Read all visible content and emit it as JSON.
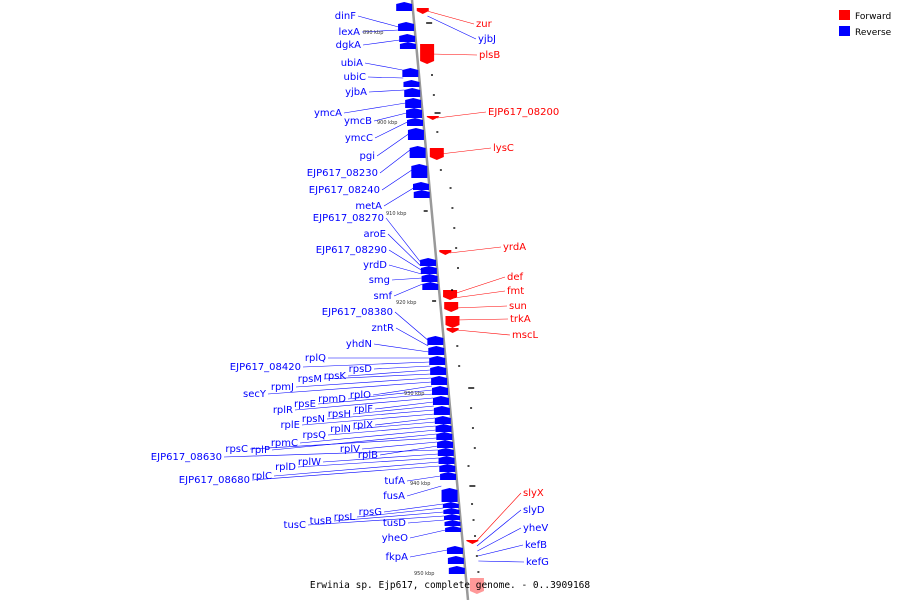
{
  "caption": "Erwinia sp. Ejp617, complete genome. - 0..3909168",
  "legend": [
    {
      "label": "Forward",
      "color": "#ff0000"
    },
    {
      "label": "Reverse",
      "color": "#0000ff"
    }
  ],
  "colors": {
    "forward": "#ff0000",
    "reverse": "#0000ff",
    "backbone": "#999999"
  },
  "scale_labels": [
    "890 kbp",
    "900 kbp",
    "910 kbp",
    "920 kbp",
    "930 kbp",
    "940 kbp",
    "950 kbp"
  ],
  "reverse_genes": [
    "dinF",
    "lexA",
    "dgkA",
    "ubiA",
    "ubiC",
    "yjbA",
    "ymcA",
    "ymcB",
    "ymcC",
    "pgi",
    "EJP617_08230",
    "EJP617_08240",
    "metA",
    "EJP617_08270",
    "aroE",
    "EJP617_08290",
    "yrdD",
    "smg",
    "smf",
    "EJP617_08380",
    "zntR",
    "yhdN",
    "rplQ",
    "EJP617_08420",
    "rpsD",
    "rpsK",
    "rpsM",
    "rpmJ",
    "secY",
    "rplO",
    "rpmD",
    "rpsE",
    "rplR",
    "rplF",
    "rpsH",
    "rpsN",
    "rplE",
    "rplX",
    "rplN",
    "rpsQ",
    "rpmC",
    "rplP",
    "rpsC",
    "rplV",
    "rplB",
    "EJP617_08630",
    "rplW",
    "rplD",
    "rplC",
    "EJP617_08680",
    "tufA",
    "fusA",
    "rpsG",
    "rpsL",
    "tusB",
    "tusC",
    "tusD",
    "yheO",
    "fkpA"
  ],
  "forward_genes": [
    "zur",
    "plsB",
    "EJP617_08200",
    "lysC",
    "yrdA",
    "def",
    "fmt",
    "sun",
    "trkA",
    "mscL",
    "slyX"
  ],
  "right_reverse_genes": [
    "yjbJ",
    "slyD",
    "yheV",
    "kefB",
    "kefG"
  ]
}
